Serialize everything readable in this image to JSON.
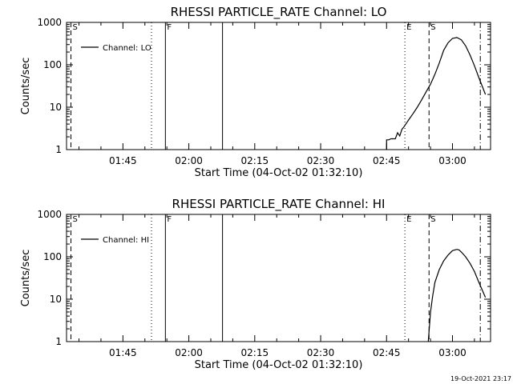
{
  "footer": {
    "timestamp": "19-Oct-2021 23:17"
  },
  "chart_data": [
    {
      "type": "line",
      "title": "RHESSI PARTICLE_RATE Channel: LO",
      "xlabel": "Start Time (04-Oct-02 01:32:10)",
      "ylabel": "Counts/sec",
      "yscale": "log",
      "ylim": [
        1,
        1000
      ],
      "xlim": [
        "01:32:10",
        "03:08:40"
      ],
      "y_ticks": [
        "1",
        "10",
        "100",
        "1000"
      ],
      "x_ticks": [
        "01:45",
        "02:00",
        "02:15",
        "02:30",
        "02:45",
        "03:00"
      ],
      "legend": {
        "position": "top-left",
        "entries": [
          "Channel: LO"
        ]
      },
      "series": [
        {
          "name": "Channel: LO",
          "x": [
            "02:44:30",
            "02:45:00",
            "02:45:00",
            "02:45:30",
            "02:46:00",
            "02:46:30",
            "02:47:00",
            "02:47:30",
            "02:48:00",
            "02:48:30",
            "02:49:00",
            "02:50:00",
            "02:51:00",
            "02:52:00",
            "02:53:00",
            "02:54:00",
            "02:55:00",
            "02:56:00",
            "02:57:00",
            "02:58:00",
            "02:59:00",
            "03:00:00",
            "03:01:00",
            "03:02:00",
            "03:03:00",
            "03:04:00",
            "03:05:00",
            "03:06:00",
            "03:07:30"
          ],
          "y": [
            0.8,
            1.0,
            1.7,
            1.7,
            1.8,
            1.8,
            1.8,
            2.5,
            2.1,
            3.0,
            3.5,
            5,
            7,
            10,
            15,
            23,
            35,
            60,
            110,
            220,
            330,
            420,
            440,
            390,
            280,
            170,
            95,
            50,
            20
          ]
        }
      ],
      "markers": [
        {
          "time": "01:33:10",
          "style": "dashed",
          "label": "S"
        },
        {
          "time": "01:51:30",
          "style": "dotted",
          "label": ""
        },
        {
          "time": "01:54:40",
          "style": "solid",
          "label": "F"
        },
        {
          "time": "02:07:40",
          "style": "solid",
          "label": ""
        },
        {
          "time": "02:49:10",
          "style": "dotted",
          "label": "E"
        },
        {
          "time": "02:54:40",
          "style": "dashed",
          "label": "S"
        },
        {
          "time": "03:06:20",
          "style": "dash-dot",
          "label": ""
        }
      ]
    },
    {
      "type": "line",
      "title": "RHESSI PARTICLE_RATE Channel: HI",
      "xlabel": "Start Time (04-Oct-02 01:32:10)",
      "ylabel": "Counts/sec",
      "yscale": "log",
      "ylim": [
        1,
        1000
      ],
      "xlim": [
        "01:32:10",
        "03:08:40"
      ],
      "y_ticks": [
        "1",
        "10",
        "100",
        "1000"
      ],
      "x_ticks": [
        "01:45",
        "02:00",
        "02:15",
        "02:30",
        "02:45",
        "03:00"
      ],
      "legend": {
        "position": "top-left",
        "entries": [
          "Channel: HI"
        ]
      },
      "series": [
        {
          "name": "Channel: HI",
          "x": [
            "02:54:30",
            "02:55:00",
            "02:55:30",
            "02:56:00",
            "02:57:00",
            "02:58:00",
            "02:59:00",
            "03:00:00",
            "03:01:00",
            "03:01:30",
            "03:02:00",
            "03:03:00",
            "03:04:00",
            "03:05:00",
            "03:06:00",
            "03:07:30"
          ],
          "y": [
            1,
            5,
            12,
            25,
            50,
            80,
            110,
            140,
            150,
            145,
            130,
            100,
            70,
            45,
            25,
            11
          ]
        }
      ],
      "markers": [
        {
          "time": "01:33:10",
          "style": "dashed",
          "label": "S"
        },
        {
          "time": "01:51:30",
          "style": "dotted",
          "label": ""
        },
        {
          "time": "01:54:40",
          "style": "solid",
          "label": "F"
        },
        {
          "time": "02:07:40",
          "style": "solid",
          "label": ""
        },
        {
          "time": "02:49:10",
          "style": "dotted",
          "label": "E"
        },
        {
          "time": "02:54:40",
          "style": "dashed",
          "label": "S"
        },
        {
          "time": "03:06:20",
          "style": "dash-dot",
          "label": ""
        }
      ]
    }
  ]
}
